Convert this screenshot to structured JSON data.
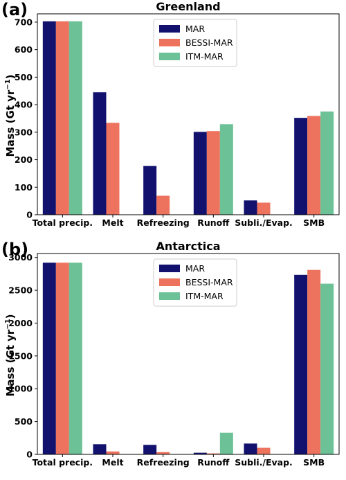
{
  "chart_data": [
    {
      "type": "bar",
      "panel_label": "(a)",
      "title": "Greenland",
      "ylabel_main": "Mass (Gt yr",
      "ylabel_exp": "−1",
      "ylabel_tail": ")",
      "categories": [
        "Total precip.",
        "Melt",
        "Refreezing",
        "Runoff",
        "Subli./Evap.",
        "SMB"
      ],
      "series": [
        {
          "name": "MAR",
          "color": "#12126e",
          "values": [
            703,
            445,
            177,
            301,
            52,
            352
          ]
        },
        {
          "name": "BESSI-MAR",
          "color": "#ee735f",
          "values": [
            703,
            334,
            69,
            304,
            44,
            359
          ]
        },
        {
          "name": "ITM-MAR",
          "color": "#6cc196",
          "values": [
            703,
            0,
            0,
            329,
            0,
            375
          ]
        }
      ],
      "ylim": [
        0,
        730
      ],
      "yticks": [
        0,
        100,
        200,
        300,
        400,
        500,
        600,
        700
      ],
      "legend_position": "upper-center",
      "grid": false
    },
    {
      "type": "bar",
      "panel_label": "(b)",
      "title": "Antarctica",
      "ylabel_main": "Mass (Gt yr",
      "ylabel_exp": "−1",
      "ylabel_tail": ")",
      "categories": [
        "Total precip.",
        "Melt",
        "Refreezing",
        "Runoff",
        "Subli./Evap.",
        "SMB"
      ],
      "series": [
        {
          "name": "MAR",
          "color": "#12126e",
          "values": [
            2920,
            155,
            145,
            25,
            165,
            2735
          ]
        },
        {
          "name": "BESSI-MAR",
          "color": "#ee735f",
          "values": [
            2920,
            45,
            35,
            15,
            100,
            2810
          ]
        },
        {
          "name": "ITM-MAR",
          "color": "#6cc196",
          "values": [
            2920,
            0,
            0,
            330,
            0,
            2600
          ]
        }
      ],
      "ylim": [
        0,
        3060
      ],
      "yticks": [
        0,
        500,
        1000,
        1500,
        2000,
        2500,
        3000
      ],
      "legend_position": "upper-center",
      "grid": false
    }
  ]
}
